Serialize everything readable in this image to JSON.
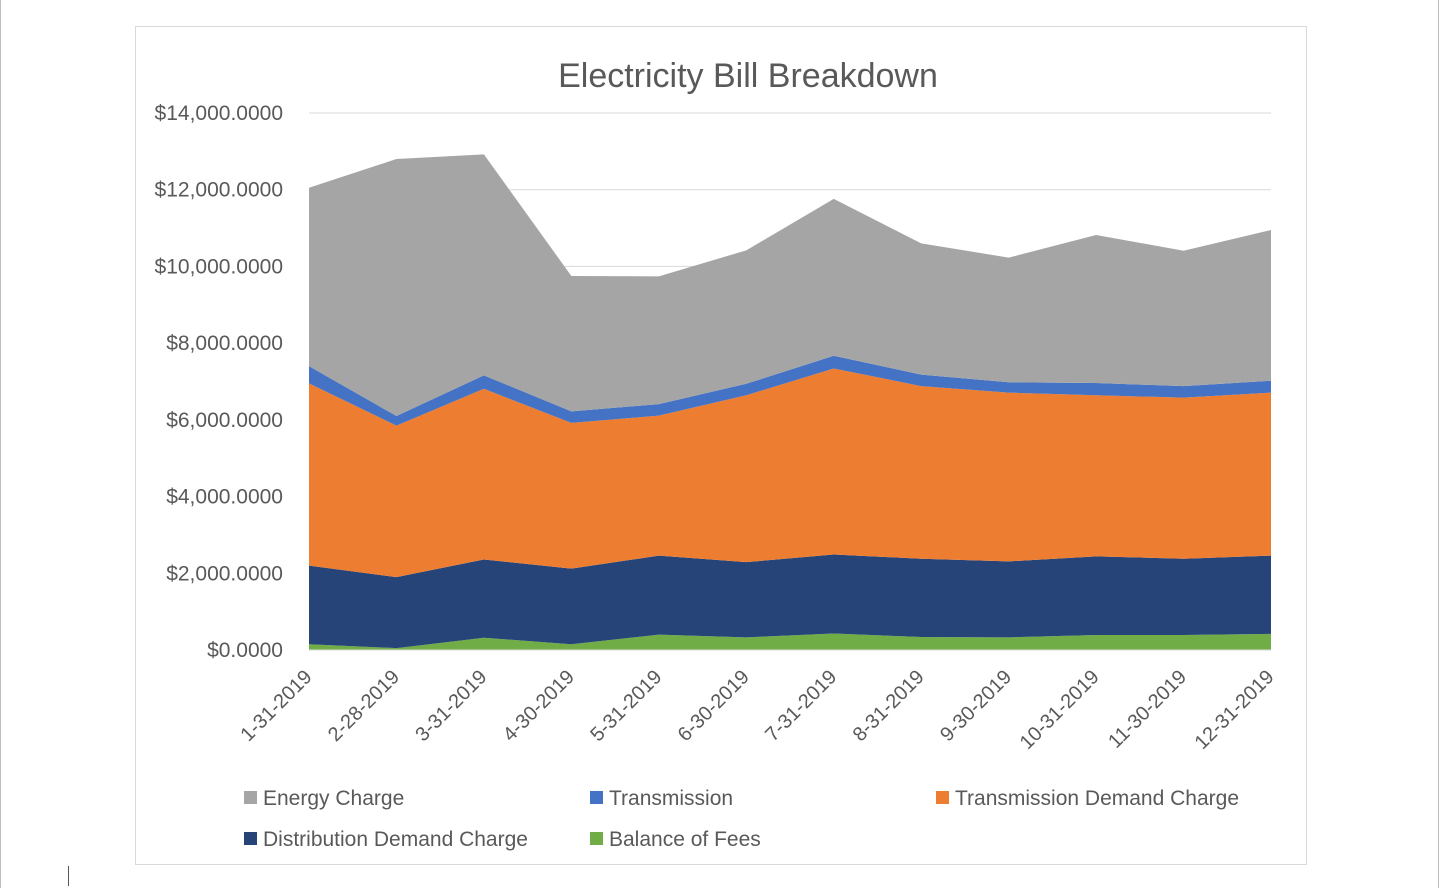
{
  "chart_data": {
    "type": "area",
    "stacked": true,
    "title": "Electricity Bill Breakdown",
    "xlabel": "",
    "ylabel": "",
    "categories": [
      "1-31-2019",
      "2-28-2019",
      "3-31-2019",
      "4-30-2019",
      "5-31-2019",
      "6-30-2019",
      "7-31-2019",
      "8-31-2019",
      "9-30-2019",
      "10-31-2019",
      "11-30-2019",
      "12-31-2019"
    ],
    "ylim": [
      0,
      14000
    ],
    "yticks": [
      0,
      2000,
      4000,
      6000,
      8000,
      10000,
      12000,
      14000
    ],
    "ytick_labels": [
      "$0.0000",
      "$2,000.0000",
      "$4,000.0000",
      "$6,000.0000",
      "$8,000.0000",
      "$10,000.0000",
      "$12,000.0000",
      "$14,000.0000"
    ],
    "grid": true,
    "legend_position": "bottom",
    "series": [
      {
        "name": "Balance of Fees",
        "color": "#70ad47",
        "values": [
          150,
          50,
          320,
          150,
          400,
          330,
          430,
          340,
          330,
          390,
          390,
          420
        ]
      },
      {
        "name": "Distribution Demand Charge",
        "color": "#264478",
        "values": [
          2050,
          1850,
          2040,
          1970,
          2060,
          1960,
          2060,
          2040,
          1980,
          2050,
          1990,
          2040
        ]
      },
      {
        "name": "Transmission Demand Charge",
        "color": "#ed7d31",
        "values": [
          4750,
          3950,
          4450,
          3800,
          3650,
          4350,
          4850,
          4500,
          4400,
          4200,
          4200,
          4250
        ]
      },
      {
        "name": "Transmission",
        "color": "#4472c4",
        "values": [
          450,
          250,
          350,
          300,
          300,
          300,
          330,
          300,
          270,
          320,
          300,
          310
        ]
      },
      {
        "name": "Energy Charge",
        "color": "#a5a5a5",
        "values": [
          4650,
          6700,
          5760,
          3530,
          3330,
          3480,
          4090,
          3420,
          3250,
          3860,
          3530,
          3930
        ]
      }
    ]
  },
  "legend": [
    {
      "label": "Energy Charge",
      "color": "#a5a5a5"
    },
    {
      "label": "Transmission",
      "color": "#4472c4"
    },
    {
      "label": "Transmission Demand Charge",
      "color": "#ed7d31"
    },
    {
      "label": "Distribution Demand Charge",
      "color": "#264478"
    },
    {
      "label": "Balance of Fees",
      "color": "#70ad47"
    }
  ]
}
